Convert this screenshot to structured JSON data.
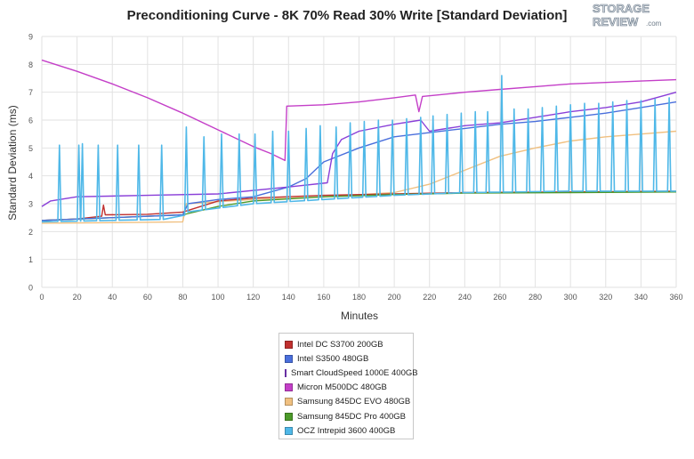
{
  "title": "Preconditioning Curve - 8K 70% Read 30% Write [Standard Deviation]",
  "logo": {
    "line1": "STORAGE",
    "line2": "REVIEW",
    "suffix": ".com"
  },
  "chart_data": {
    "type": "line",
    "title": "Preconditioning Curve - 8K 70% Read 30% Write [Standard Deviation]",
    "xlabel": "Minutes",
    "ylabel": "Standard Deviation (ms)",
    "xlim": [
      0,
      360
    ],
    "ylim": [
      0,
      9
    ],
    "xticks": [
      0,
      20,
      40,
      60,
      80,
      100,
      120,
      140,
      160,
      180,
      200,
      220,
      240,
      260,
      280,
      300,
      320,
      340,
      360
    ],
    "yticks": [
      0,
      1,
      2,
      3,
      4,
      5,
      6,
      7,
      8,
      9
    ],
    "grid": true,
    "legend_position": "bottom-center",
    "series": [
      {
        "name": "Intel DC S3700 200GB",
        "color": "#c0302f",
        "points": [
          [
            0,
            2.4
          ],
          [
            20,
            2.45
          ],
          [
            34,
            2.55
          ],
          [
            35,
            2.95
          ],
          [
            36,
            2.6
          ],
          [
            60,
            2.62
          ],
          [
            80,
            2.7
          ],
          [
            100,
            3.1
          ],
          [
            120,
            3.2
          ],
          [
            160,
            3.3
          ],
          [
            200,
            3.35
          ],
          [
            240,
            3.4
          ],
          [
            300,
            3.42
          ],
          [
            360,
            3.45
          ]
        ]
      },
      {
        "name": "Intel S3500 480GB",
        "color": "#4a6fdc",
        "points": [
          [
            0,
            2.4
          ],
          [
            40,
            2.5
          ],
          [
            80,
            2.6
          ],
          [
            83,
            3.0
          ],
          [
            100,
            3.15
          ],
          [
            120,
            3.25
          ],
          [
            140,
            3.6
          ],
          [
            150,
            3.9
          ],
          [
            160,
            4.5
          ],
          [
            180,
            5.0
          ],
          [
            200,
            5.4
          ],
          [
            220,
            5.55
          ],
          [
            240,
            5.7
          ],
          [
            260,
            5.85
          ],
          [
            280,
            5.95
          ],
          [
            300,
            6.1
          ],
          [
            320,
            6.25
          ],
          [
            340,
            6.45
          ],
          [
            360,
            6.65
          ]
        ]
      },
      {
        "name": "Smart CloudSpeed 1000E 400GB",
        "color": "#8a3fd8",
        "points": [
          [
            0,
            2.9
          ],
          [
            5,
            3.1
          ],
          [
            20,
            3.25
          ],
          [
            60,
            3.3
          ],
          [
            100,
            3.35
          ],
          [
            140,
            3.6
          ],
          [
            162,
            3.75
          ],
          [
            165,
            4.8
          ],
          [
            170,
            5.3
          ],
          [
            180,
            5.6
          ],
          [
            200,
            5.85
          ],
          [
            215,
            6.0
          ],
          [
            220,
            5.6
          ],
          [
            240,
            5.8
          ],
          [
            260,
            5.9
          ],
          [
            280,
            6.1
          ],
          [
            300,
            6.3
          ],
          [
            320,
            6.45
          ],
          [
            340,
            6.65
          ],
          [
            360,
            7.0
          ]
        ]
      },
      {
        "name": "Micron M500DC 480GB",
        "color": "#c43fc8",
        "points": [
          [
            0,
            8.15
          ],
          [
            20,
            7.75
          ],
          [
            40,
            7.3
          ],
          [
            60,
            6.8
          ],
          [
            80,
            6.25
          ],
          [
            100,
            5.65
          ],
          [
            120,
            5.05
          ],
          [
            130,
            4.8
          ],
          [
            138,
            4.55
          ],
          [
            139,
            6.5
          ],
          [
            160,
            6.55
          ],
          [
            180,
            6.65
          ],
          [
            200,
            6.8
          ],
          [
            212,
            6.9
          ],
          [
            214,
            6.3
          ],
          [
            216,
            6.85
          ],
          [
            240,
            7.0
          ],
          [
            260,
            7.1
          ],
          [
            280,
            7.2
          ],
          [
            300,
            7.3
          ],
          [
            320,
            7.35
          ],
          [
            340,
            7.4
          ],
          [
            360,
            7.45
          ]
        ]
      },
      {
        "name": "Samsung 845DC EVO 480GB",
        "color": "#f0c080",
        "points": [
          [
            0,
            2.3
          ],
          [
            40,
            2.32
          ],
          [
            80,
            2.35
          ],
          [
            82,
            3.0
          ],
          [
            120,
            3.15
          ],
          [
            160,
            3.25
          ],
          [
            200,
            3.4
          ],
          [
            220,
            3.7
          ],
          [
            240,
            4.2
          ],
          [
            260,
            4.7
          ],
          [
            280,
            5.0
          ],
          [
            300,
            5.25
          ],
          [
            320,
            5.4
          ],
          [
            340,
            5.5
          ],
          [
            360,
            5.6
          ]
        ]
      },
      {
        "name": "Samsung 845DC Pro 400GB",
        "color": "#4c9a2a",
        "points": [
          [
            0,
            2.4
          ],
          [
            40,
            2.5
          ],
          [
            80,
            2.6
          ],
          [
            100,
            2.9
          ],
          [
            120,
            3.1
          ],
          [
            160,
            3.25
          ],
          [
            200,
            3.33
          ],
          [
            240,
            3.38
          ],
          [
            300,
            3.4
          ],
          [
            360,
            3.42
          ]
        ]
      },
      {
        "name": "OCZ Intrepid 3600 400GB",
        "color": "#4fb8e8",
        "baseline": [
          [
            0,
            2.35
          ],
          [
            40,
            2.4
          ],
          [
            80,
            2.45
          ],
          [
            82,
            2.7
          ],
          [
            120,
            3.0
          ],
          [
            160,
            3.15
          ],
          [
            200,
            3.3
          ],
          [
            240,
            3.4
          ],
          [
            300,
            3.45
          ],
          [
            360,
            3.45
          ]
        ],
        "spikes": [
          [
            10,
            5.1
          ],
          [
            21,
            5.1
          ],
          [
            23,
            5.15
          ],
          [
            32,
            5.1
          ],
          [
            43,
            5.1
          ],
          [
            55,
            5.1
          ],
          [
            68,
            5.1
          ],
          [
            82,
            5.75
          ],
          [
            92,
            5.4
          ],
          [
            102,
            5.5
          ],
          [
            112,
            5.5
          ],
          [
            121,
            5.5
          ],
          [
            131,
            5.6
          ],
          [
            140,
            5.6
          ],
          [
            150,
            5.7
          ],
          [
            158,
            5.8
          ],
          [
            167,
            5.75
          ],
          [
            175,
            5.9
          ],
          [
            183,
            5.95
          ],
          [
            191,
            6.0
          ],
          [
            199,
            6.0
          ],
          [
            207,
            6.05
          ],
          [
            215,
            6.1
          ],
          [
            222,
            6.15
          ],
          [
            230,
            6.2
          ],
          [
            238,
            6.25
          ],
          [
            246,
            6.3
          ],
          [
            253,
            6.3
          ],
          [
            261,
            7.6
          ],
          [
            268,
            6.4
          ],
          [
            276,
            6.4
          ],
          [
            284,
            6.45
          ],
          [
            292,
            6.5
          ],
          [
            300,
            6.55
          ],
          [
            308,
            6.6
          ],
          [
            316,
            6.6
          ],
          [
            324,
            6.65
          ],
          [
            332,
            6.7
          ],
          [
            340,
            6.7
          ],
          [
            348,
            6.75
          ],
          [
            356,
            6.8
          ]
        ]
      }
    ]
  }
}
